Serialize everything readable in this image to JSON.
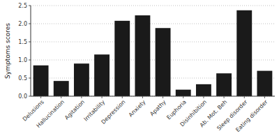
{
  "chart_data": {
    "type": "bar",
    "categories": [
      "Delusions",
      "Hallucination",
      "Agitation",
      "Irritability",
      "Depression",
      "Anxiety",
      "Apathy",
      "Euphoria",
      "Disinhibition",
      "Ab. Mot. Beh",
      "Sleep disorder",
      "Eating disorder"
    ],
    "values": [
      0.85,
      0.42,
      0.9,
      1.15,
      2.08,
      2.23,
      1.88,
      0.18,
      0.33,
      0.63,
      2.37,
      0.7
    ],
    "color": "#1a1a1a",
    "ylabel": "Symptoms scores",
    "ylim": [
      0,
      2.5
    ],
    "yticks": [
      {
        "value": 0.0,
        "label": "0.0"
      },
      {
        "value": 0.5,
        "label": "0.5"
      },
      {
        "value": 1.0,
        "label": "1.0"
      },
      {
        "value": 1.5,
        "label": "1.5"
      },
      {
        "value": 2.0,
        "label": "2.0"
      },
      {
        "value": 2.5,
        "label": "2.5"
      }
    ],
    "grid": true
  }
}
